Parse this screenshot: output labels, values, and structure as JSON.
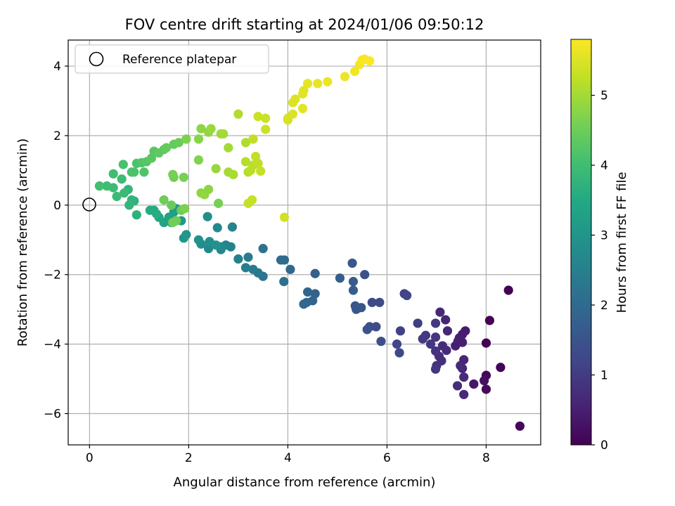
{
  "chart_data": {
    "type": "scatter",
    "title": "FOV centre drift starting at 2024/01/06 09:50:12",
    "xlabel": "Angular distance from reference (arcmin)",
    "ylabel": "Rotation from reference (arcmin)",
    "xlim": [
      -0.43,
      9.1
    ],
    "ylim": [
      -6.9,
      4.75
    ],
    "xticks": [
      "0",
      "2",
      "4",
      "6",
      "8"
    ],
    "yticks": [
      "−6",
      "−4",
      "−2",
      "0",
      "2",
      "4"
    ],
    "grid": true,
    "legend": {
      "position": "top-left",
      "entries": [
        "Reference platepar"
      ]
    },
    "reference_point": {
      "x": 0,
      "y": 0
    },
    "colorbar": {
      "label": "Hours from first FF file",
      "range": [
        0,
        5.8
      ],
      "ticks": [
        "0",
        "1",
        "2",
        "3",
        "4",
        "5"
      ],
      "colormap": "viridis"
    },
    "points": [
      [
        8.45,
        -2.45,
        0.0
      ],
      [
        8.07,
        -3.32,
        0.0
      ],
      [
        8.0,
        -3.97,
        0.0
      ],
      [
        8.29,
        -4.67,
        0.05
      ],
      [
        8.0,
        -4.9,
        0.1
      ],
      [
        8.0,
        -5.3,
        0.15
      ],
      [
        8.68,
        -6.36,
        0.1
      ],
      [
        7.96,
        -5.05,
        0.25
      ],
      [
        7.75,
        -5.15,
        0.35
      ],
      [
        7.58,
        -3.62,
        0.45
      ],
      [
        7.52,
        -3.72,
        0.45
      ],
      [
        7.46,
        -3.82,
        0.5
      ],
      [
        7.43,
        -3.92,
        0.55
      ],
      [
        7.52,
        -3.95,
        0.5
      ],
      [
        7.38,
        -4.05,
        0.5
      ],
      [
        7.55,
        -4.45,
        0.6
      ],
      [
        7.52,
        -4.7,
        0.6
      ],
      [
        7.48,
        -4.62,
        0.7
      ],
      [
        7.55,
        -4.95,
        0.7
      ],
      [
        7.42,
        -5.2,
        0.75
      ],
      [
        7.55,
        -5.45,
        0.7
      ],
      [
        7.18,
        -3.3,
        0.6
      ],
      [
        7.07,
        -3.08,
        0.65
      ],
      [
        7.22,
        -3.62,
        0.65
      ],
      [
        7.12,
        -4.05,
        0.7
      ],
      [
        7.2,
        -4.18,
        0.75
      ],
      [
        7.05,
        -4.35,
        0.8
      ],
      [
        7.1,
        -4.48,
        0.8
      ],
      [
        7.0,
        -4.62,
        0.85
      ],
      [
        6.98,
        -4.72,
        0.9
      ],
      [
        6.98,
        -4.2,
        0.85
      ],
      [
        6.98,
        -3.8,
        0.9
      ],
      [
        6.98,
        -3.4,
        0.95
      ],
      [
        6.88,
        -4.0,
        0.9
      ],
      [
        6.78,
        -3.75,
        0.95
      ],
      [
        6.72,
        -3.85,
        1.0
      ],
      [
        6.62,
        -3.4,
        1.05
      ],
      [
        6.27,
        -3.62,
        1.1
      ],
      [
        6.35,
        -2.55,
        1.15
      ],
      [
        6.4,
        -2.6,
        1.2
      ],
      [
        6.2,
        -4.0,
        1.2
      ],
      [
        6.25,
        -4.25,
        1.25
      ],
      [
        5.85,
        -2.8,
        1.3
      ],
      [
        5.7,
        -2.8,
        1.3
      ],
      [
        5.78,
        -3.5,
        1.35
      ],
      [
        5.65,
        -3.5,
        1.4
      ],
      [
        5.88,
        -3.92,
        1.4
      ],
      [
        5.6,
        -3.58,
        1.45
      ],
      [
        5.55,
        -2.0,
        1.5
      ],
      [
        5.48,
        -2.95,
        1.55
      ],
      [
        5.36,
        -2.9,
        1.55
      ],
      [
        5.38,
        -3.0,
        1.6
      ],
      [
        5.3,
        -1.67,
        1.6
      ],
      [
        5.32,
        -2.2,
        1.65
      ],
      [
        5.32,
        -2.45,
        1.7
      ],
      [
        5.05,
        -2.1,
        1.7
      ],
      [
        4.55,
        -1.97,
        1.75
      ],
      [
        4.55,
        -2.55,
        1.8
      ],
      [
        4.4,
        -2.5,
        1.85
      ],
      [
        4.5,
        -2.75,
        1.85
      ],
      [
        4.38,
        -2.8,
        1.9
      ],
      [
        4.32,
        -2.85,
        1.95
      ],
      [
        4.05,
        -1.85,
        1.95
      ],
      [
        3.93,
        -1.58,
        2.0
      ],
      [
        3.86,
        -1.58,
        2.05
      ],
      [
        3.92,
        -2.2,
        2.1
      ],
      [
        3.5,
        -1.25,
        2.2
      ],
      [
        3.5,
        -2.05,
        2.25
      ],
      [
        3.4,
        -1.95,
        2.3
      ],
      [
        3.3,
        -1.85,
        2.35
      ],
      [
        3.2,
        -1.5,
        2.4
      ],
      [
        3.15,
        -1.8,
        2.45
      ],
      [
        3.0,
        -1.55,
        2.5
      ],
      [
        2.85,
        -1.2,
        2.5
      ],
      [
        2.88,
        -0.63,
        2.6
      ],
      [
        2.75,
        -1.15,
        2.6
      ],
      [
        2.65,
        -1.28,
        2.65
      ],
      [
        2.58,
        -0.65,
        2.7
      ],
      [
        2.65,
        -1.2,
        2.75
      ],
      [
        2.4,
        -1.25,
        2.7
      ],
      [
        2.38,
        -0.33,
        2.8
      ],
      [
        2.25,
        -1.12,
        2.85
      ],
      [
        2.2,
        -1.0,
        2.9
      ],
      [
        2.42,
        -1.05,
        2.9
      ],
      [
        2.55,
        -1.15,
        2.95
      ],
      [
        1.95,
        -0.85,
        3.0
      ],
      [
        1.9,
        -0.95,
        3.05
      ],
      [
        1.85,
        -0.45,
        3.1
      ],
      [
        1.75,
        -0.1,
        3.15
      ],
      [
        1.7,
        -0.2,
        3.2
      ],
      [
        1.65,
        -0.5,
        3.25
      ],
      [
        1.6,
        -0.35,
        3.3
      ],
      [
        1.5,
        -0.5,
        3.35
      ],
      [
        1.4,
        -0.35,
        3.4
      ],
      [
        1.3,
        -0.15,
        3.5
      ],
      [
        1.22,
        -0.15,
        3.55
      ],
      [
        1.35,
        -0.25,
        3.6
      ],
      [
        0.95,
        -0.28,
        3.7
      ],
      [
        0.9,
        0.12,
        3.7
      ],
      [
        0.85,
        0.15,
        3.75
      ],
      [
        0.8,
        0.0,
        3.8
      ],
      [
        0.78,
        0.45,
        3.8
      ],
      [
        0.7,
        0.35,
        3.9
      ],
      [
        0.55,
        0.25,
        3.9
      ],
      [
        0.65,
        0.75,
        3.95
      ],
      [
        0.48,
        0.5,
        3.95
      ],
      [
        0.48,
        0.9,
        4.0
      ],
      [
        0.35,
        0.55,
        4.0
      ],
      [
        0.2,
        0.55,
        4.05
      ],
      [
        0.68,
        1.17,
        4.1
      ],
      [
        0.85,
        0.95,
        4.1
      ],
      [
        0.9,
        0.95,
        4.15
      ],
      [
        0.95,
        1.2,
        4.15
      ],
      [
        1.05,
        1.22,
        4.2
      ],
      [
        1.1,
        0.95,
        4.2
      ],
      [
        1.15,
        1.25,
        4.25
      ],
      [
        1.25,
        1.35,
        4.3
      ],
      [
        1.3,
        1.55,
        4.3
      ],
      [
        1.4,
        1.5,
        4.35
      ],
      [
        1.5,
        1.6,
        4.35
      ],
      [
        1.55,
        1.65,
        4.4
      ],
      [
        1.7,
        1.75,
        4.4
      ],
      [
        1.8,
        1.8,
        4.45
      ],
      [
        1.65,
        0.0,
        4.45
      ],
      [
        1.5,
        0.15,
        4.5
      ],
      [
        1.85,
        -0.15,
        4.5
      ],
      [
        1.75,
        -0.45,
        4.5
      ],
      [
        1.68,
        -0.5,
        4.55
      ],
      [
        1.7,
        0.8,
        4.55
      ],
      [
        1.68,
        0.88,
        4.6
      ],
      [
        1.9,
        0.8,
        4.6
      ],
      [
        1.95,
        1.9,
        4.65
      ],
      [
        1.92,
        -0.1,
        4.65
      ],
      [
        2.2,
        1.3,
        4.7
      ],
      [
        2.2,
        1.9,
        4.75
      ],
      [
        2.25,
        2.2,
        4.8
      ],
      [
        2.25,
        0.35,
        4.8
      ],
      [
        2.32,
        0.3,
        4.85
      ],
      [
        2.4,
        0.45,
        4.8
      ],
      [
        2.4,
        2.1,
        4.85
      ],
      [
        2.45,
        2.2,
        4.9
      ],
      [
        2.55,
        1.05,
        4.9
      ],
      [
        2.65,
        2.05,
        4.95
      ],
      [
        2.7,
        2.05,
        5.0
      ],
      [
        2.8,
        1.65,
        5.0
      ],
      [
        2.8,
        0.95,
        5.0
      ],
      [
        2.9,
        0.88,
        5.05
      ],
      [
        2.6,
        0.05,
        4.6
      ],
      [
        3.0,
        2.62,
        5.1
      ],
      [
        3.15,
        1.8,
        5.1
      ],
      [
        3.15,
        1.25,
        5.15
      ],
      [
        3.2,
        0.95,
        5.15
      ],
      [
        3.25,
        1.0,
        5.2
      ],
      [
        3.3,
        1.15,
        5.2
      ],
      [
        3.3,
        1.9,
        5.25
      ],
      [
        3.35,
        1.4,
        5.25
      ],
      [
        3.4,
        1.2,
        5.25
      ],
      [
        3.45,
        0.98,
        5.3
      ],
      [
        3.28,
        0.15,
        5.3
      ],
      [
        3.2,
        0.05,
        5.3
      ],
      [
        3.4,
        2.55,
        5.35
      ],
      [
        3.55,
        2.5,
        5.35
      ],
      [
        3.55,
        2.18,
        5.35
      ],
      [
        3.93,
        -0.35,
        5.4
      ],
      [
        4.0,
        2.5,
        5.45
      ],
      [
        4.0,
        2.45,
        5.45
      ],
      [
        4.1,
        2.62,
        5.5
      ],
      [
        4.1,
        2.95,
        5.5
      ],
      [
        4.15,
        3.05,
        5.5
      ],
      [
        4.3,
        2.78,
        5.55
      ],
      [
        4.3,
        3.2,
        5.55
      ],
      [
        4.32,
        3.3,
        5.55
      ],
      [
        4.4,
        3.5,
        5.6
      ],
      [
        4.6,
        3.5,
        5.6
      ],
      [
        4.8,
        3.55,
        5.65
      ],
      [
        5.15,
        3.7,
        5.65
      ],
      [
        5.35,
        3.85,
        5.7
      ],
      [
        5.45,
        4.05,
        5.7
      ],
      [
        5.5,
        4.18,
        5.75
      ],
      [
        5.55,
        4.2,
        5.75
      ],
      [
        5.65,
        4.15,
        5.8
      ]
    ]
  }
}
